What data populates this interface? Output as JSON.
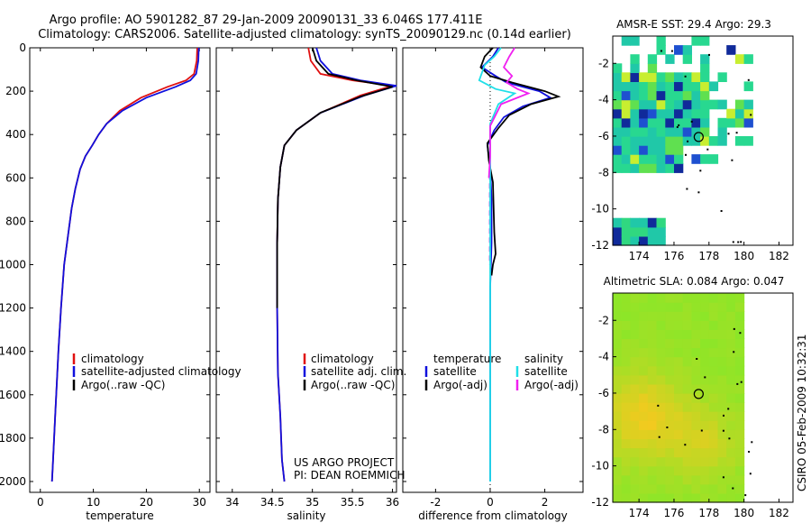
{
  "title_line1": "Argo profile: AO 5901282_87 29-Jan-2009 20090131_33 6.046S 177.411E",
  "title_line2": "Climatology: CARS2006. Satellite-adjusted climatology: synTS_20090129.nc (0.14d earlier)",
  "side_stamp": "CSIRO 05-Feb-2009 10:32:31",
  "colors": {
    "climatology": "#e01010",
    "satellite": "#1010dd",
    "argo": "#000000",
    "sal_satellite": "#20dfe8",
    "sal_argo": "#f020f0"
  },
  "chart_data": [
    {
      "id": "temperature",
      "type": "line",
      "xlabel": "temperature",
      "ylabel": "",
      "xlim": [
        -2,
        32
      ],
      "ylim": [
        2050,
        0
      ],
      "xticks": [
        0,
        10,
        20,
        30
      ],
      "yticks": [
        0,
        200,
        400,
        600,
        800,
        1000,
        1200,
        1400,
        1600,
        1800,
        2000
      ],
      "legend": [
        "climatology",
        "satellite-adjusted climatology",
        "Argo(..raw -QC)"
      ],
      "series": [
        {
          "name": "climatology",
          "color": "red",
          "x": [
            29.6,
            29.5,
            29.0,
            27.5,
            24,
            19,
            15,
            12.5,
            11,
            9.8,
            8.5,
            7.5,
            6.6,
            5.9,
            4.5,
            3.9,
            3.4,
            2.8,
            2.4,
            2.2
          ],
          "y": [
            0,
            60,
            120,
            150,
            180,
            230,
            290,
            350,
            400,
            450,
            500,
            560,
            650,
            740,
            1000,
            1200,
            1400,
            1700,
            1900,
            2000
          ]
        },
        {
          "name": "satellite-adjusted",
          "color": "blue",
          "x": [
            29.9,
            29.8,
            29.4,
            28.3,
            25.5,
            20,
            15.5,
            12.5,
            11,
            9.8,
            8.5,
            7.5,
            6.6,
            5.9,
            4.5,
            3.9,
            3.4,
            2.8,
            2.4,
            2.2
          ],
          "y": [
            0,
            60,
            120,
            150,
            180,
            230,
            290,
            350,
            400,
            450,
            500,
            560,
            650,
            740,
            1000,
            1200,
            1400,
            1700,
            1900,
            2000
          ]
        }
      ]
    },
    {
      "id": "salinity",
      "type": "line",
      "xlabel": "salinity",
      "xlim": [
        33.8,
        36.05
      ],
      "ylim": [
        2050,
        0
      ],
      "xticks": [
        34,
        34.5,
        35,
        35.5,
        36
      ],
      "legend": [
        "climatology",
        "satellite adj. clim.",
        "Argo(..raw -QC)"
      ],
      "series": [
        {
          "name": "climatology",
          "color": "red",
          "x": [
            34.95,
            34.98,
            35.1,
            35.5,
            36.0,
            35.6,
            35.1,
            34.8,
            34.65,
            34.6,
            34.57,
            34.56,
            34.56,
            34.57,
            34.6,
            34.62,
            34.65
          ],
          "y": [
            0,
            60,
            120,
            150,
            175,
            220,
            300,
            380,
            450,
            550,
            700,
            900,
            1200,
            1500,
            1700,
            1900,
            2000
          ]
        },
        {
          "name": "satellite-adjusted",
          "color": "blue",
          "x": [
            35.05,
            35.1,
            35.25,
            35.6,
            36.05,
            35.65,
            35.1,
            34.8,
            34.65,
            34.6,
            34.57,
            34.56,
            34.56,
            34.57,
            34.6,
            34.62,
            34.65
          ],
          "y": [
            0,
            60,
            120,
            150,
            175,
            220,
            300,
            380,
            450,
            550,
            700,
            900,
            1200,
            1500,
            1700,
            1900,
            2000
          ]
        },
        {
          "name": "argo",
          "color": "black",
          "x": [
            35.0,
            35.05,
            35.2,
            35.55,
            36.0,
            35.6,
            35.1,
            34.8,
            34.65,
            34.6,
            34.57,
            34.56,
            34.56
          ],
          "y": [
            0,
            60,
            120,
            150,
            180,
            225,
            300,
            380,
            450,
            550,
            700,
            900,
            1200
          ]
        }
      ]
    },
    {
      "id": "difference",
      "type": "line",
      "xlabel": "difference from climatology",
      "xlim": [
        -3.2,
        3.4
      ],
      "ylim": [
        2050,
        0
      ],
      "xticks": [
        -2,
        0,
        2
      ],
      "legend_temperature_head": "temperature",
      "legend_salinity_head": "salinity",
      "legend_temperature": [
        "satellite",
        "Argo(-adj)"
      ],
      "legend_salinity": [
        "satellite",
        "Argo(-adj)"
      ],
      "series": [
        {
          "name": "temp satellite",
          "color": "blue",
          "x": [
            0.3,
            0.1,
            -0.3,
            0.2,
            0.6,
            1.8,
            2.2,
            1.2,
            0.5,
            0.15,
            -0.1,
            0.0,
            0.05,
            0.05,
            0.0,
            0.0,
            0.0
          ],
          "y": [
            0,
            40,
            90,
            130,
            160,
            200,
            230,
            270,
            320,
            380,
            450,
            550,
            700,
            900,
            1100,
            1500,
            2000
          ]
        },
        {
          "name": "temp argo",
          "color": "black",
          "x": [
            0.1,
            -0.2,
            -0.35,
            0.0,
            0.8,
            2.0,
            2.5,
            1.5,
            0.7,
            0.3,
            -0.1,
            -0.05,
            0.1,
            0.15,
            0.2,
            0.1,
            0.05
          ],
          "y": [
            0,
            40,
            90,
            130,
            160,
            200,
            225,
            260,
            310,
            370,
            440,
            520,
            620,
            850,
            950,
            1000,
            1050
          ]
        },
        {
          "name": "sal satellite",
          "color": "cyan",
          "x": [
            0.4,
            0.15,
            -0.2,
            -0.4,
            0.2,
            0.9,
            0.3,
            0.0,
            0.0,
            0.0,
            0.0
          ],
          "y": [
            0,
            40,
            80,
            150,
            190,
            210,
            260,
            350,
            500,
            1200,
            2000
          ]
        },
        {
          "name": "sal argo",
          "color": "magenta",
          "x": [
            0.9,
            0.7,
            0.5,
            0.8,
            0.6,
            1.0,
            1.4,
            0.4,
            0.0,
            0.0,
            -0.05
          ],
          "y": [
            0,
            40,
            90,
            130,
            160,
            190,
            210,
            260,
            360,
            500,
            600
          ]
        }
      ]
    },
    {
      "id": "sst_map",
      "type": "heatmap",
      "title": "AMSR-E SST: 29.4 Argo: 29.3",
      "xlim": [
        172.5,
        182.8
      ],
      "ylim": [
        -12,
        -0.5
      ],
      "xticks": [
        174,
        176,
        178,
        180,
        182
      ],
      "yticks": [
        -2,
        -4,
        -6,
        -8,
        -10,
        -12
      ],
      "marker": {
        "lon": 177.411,
        "lat": -6.046
      }
    },
    {
      "id": "sla_map",
      "type": "heatmap",
      "title": "Altimetric SLA: 0.084 Argo: 0.047",
      "xlim": [
        172.5,
        182.8
      ],
      "ylim": [
        -12,
        -0.5
      ],
      "xticks": [
        174,
        176,
        178,
        180,
        182
      ],
      "yticks": [
        -2,
        -4,
        -6,
        -8,
        -10,
        -12
      ],
      "marker": {
        "lon": 177.411,
        "lat": -6.046
      }
    }
  ],
  "annotation": {
    "line1": "US ARGO PROJECT",
    "line2": "PI: DEAN ROEMMICH"
  }
}
